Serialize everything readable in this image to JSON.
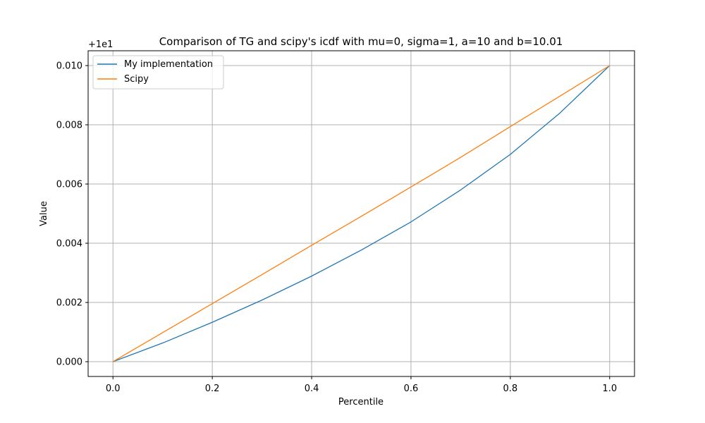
{
  "chart_data": {
    "type": "line",
    "title": "Comparison of TG and scipy's icdf with mu=0, sigma=1, a=10 and b=10.01",
    "xlabel": "Percentile",
    "ylabel": "Value",
    "offset_label": "+1e1",
    "xlim": [
      -0.05,
      1.05
    ],
    "ylim": [
      -0.0005,
      0.0105
    ],
    "xticks": [
      0.0,
      0.2,
      0.4,
      0.6,
      0.8,
      1.0
    ],
    "xtick_labels": [
      "0.0",
      "0.2",
      "0.4",
      "0.6",
      "0.8",
      "1.0"
    ],
    "yticks": [
      0.0,
      0.002,
      0.004,
      0.006,
      0.008,
      0.01
    ],
    "ytick_labels": [
      "0.000",
      "0.002",
      "0.004",
      "0.006",
      "0.008",
      "0.010"
    ],
    "grid": true,
    "legend_position": "top-left",
    "x": [
      0.0,
      0.1,
      0.2,
      0.3,
      0.4,
      0.5,
      0.6,
      0.7,
      0.8,
      0.9,
      1.0
    ],
    "series": [
      {
        "name": "My implementation",
        "color": "#1f77b4",
        "values": [
          0.0,
          0.00063,
          0.00133,
          0.00208,
          0.00289,
          0.00377,
          0.00472,
          0.0058,
          0.007,
          0.0084,
          0.01
        ]
      },
      {
        "name": "Scipy",
        "color": "#ff7f0e",
        "values": [
          0.0,
          0.00098,
          0.00196,
          0.00294,
          0.00393,
          0.00491,
          0.0059,
          0.0069,
          0.00794,
          0.00897,
          0.01
        ]
      }
    ]
  }
}
